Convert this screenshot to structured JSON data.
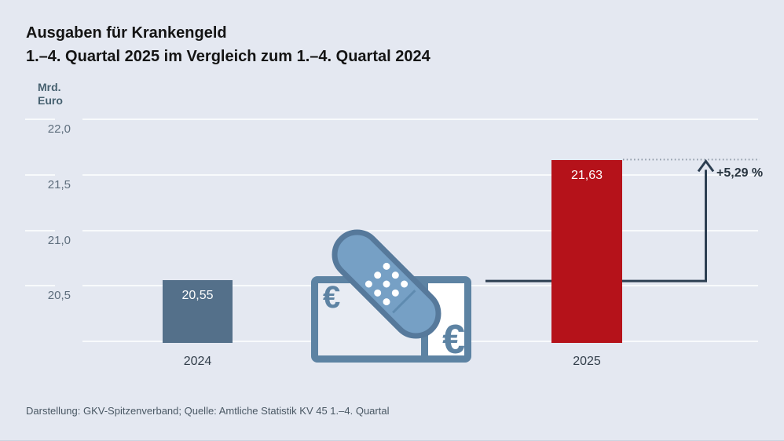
{
  "header": {
    "title": "Ausgaben für Krankengeld",
    "subtitle": "1.–4. Quartal 2025 im Vergleich zum 1.–4. Quartal 2024"
  },
  "axis": {
    "unit_line1": "Mrd.",
    "unit_line2": "Euro"
  },
  "chart_data": {
    "type": "bar",
    "categories": [
      "2024",
      "2025"
    ],
    "values": [
      20.55,
      21.63
    ],
    "value_labels": [
      "20,55",
      "21,63"
    ],
    "bar_colors": [
      "#54708a",
      "#b5121a"
    ],
    "title": "Ausgaben für Krankengeld",
    "subtitle": "1.–4. Quartal 2025 im Vergleich zum 1.–4. Quartal 2024",
    "xlabel": "",
    "ylabel": "Mrd. Euro",
    "ylim": [
      20.0,
      22.0
    ],
    "yticks": [
      22.0,
      21.5,
      21.0,
      20.5
    ],
    "ytick_labels": [
      "22,0",
      "21,5",
      "21,0",
      "20,5"
    ],
    "grid": true,
    "legend": "none",
    "annotation": "+5,29 %"
  },
  "icon": {
    "currency_symbol": "€"
  },
  "footer": {
    "source": "Darstellung: GKV-Spitzenverband; Quelle: Amtliche Statistik KV 45 1.–4. Quartal"
  },
  "colors": {
    "background": "#e4e8f1",
    "gridline": "#f8fafc",
    "bar_2024": "#54708a",
    "bar_2025": "#b5121a",
    "arrow": "#2d3f52",
    "dotted_line": "#8d99a6",
    "icon_outline": "#5d83a3",
    "bandaid_fill": "#76a0c5"
  }
}
